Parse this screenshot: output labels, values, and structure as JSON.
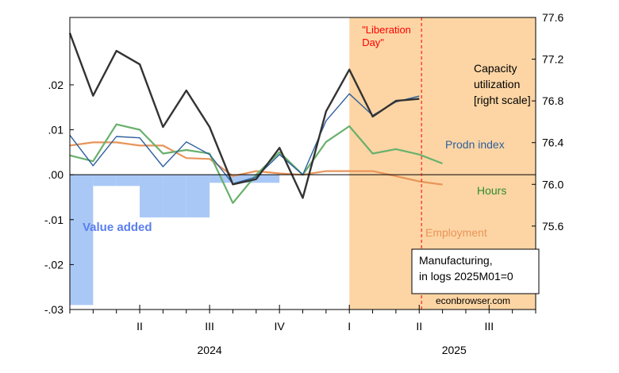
{
  "chart_data": {
    "type": "line",
    "x_labels": [
      {
        "label": "II",
        "t": 4
      },
      {
        "label": "III",
        "t": 7
      },
      {
        "label": "IV",
        "t": 10
      },
      {
        "label": "I",
        "t": 13
      },
      {
        "label": "II",
        "t": 16
      },
      {
        "label": "III",
        "t": 19
      }
    ],
    "year_labels": [
      {
        "label": "2024",
        "t": 7
      },
      {
        "label": "2025",
        "t": 17.5
      }
    ],
    "x_range": [
      1,
      21
    ],
    "left_axis": {
      "range": [
        -0.03,
        0.035
      ],
      "ticks": [
        ".02",
        ".01",
        ".00",
        "-.01",
        "-.02",
        "-.03"
      ],
      "tick_values": [
        0.02,
        0.01,
        0.0,
        -0.01,
        -0.02,
        -0.03
      ]
    },
    "right_axis": {
      "range": [
        74.8,
        77.6
      ],
      "ticks": [
        "77.6",
        "77.2",
        "76.8",
        "76.4",
        "76.0",
        "75.6"
      ],
      "tick_values": [
        77.6,
        77.2,
        76.8,
        76.4,
        76.0,
        75.6
      ]
    },
    "shading": {
      "start_t": 13,
      "end_t": 21,
      "color": "#fdd5a4",
      "label": "\"Liberation\nDay\"",
      "label_color": "#ff0000"
    },
    "event_line": {
      "t": 16.1,
      "color": "#ff0000"
    },
    "bars": {
      "name": "Value added",
      "color": "#a9c8f5",
      "label_color": "#5a7ef0",
      "values": [
        {
          "t0": 1,
          "t1": 2,
          "value": -0.029
        },
        {
          "t0": 2,
          "t1": 3,
          "value": -0.0025
        },
        {
          "t0": 3,
          "t1": 4,
          "value": -0.0025
        },
        {
          "t0": 4,
          "t1": 5,
          "value": -0.0095
        },
        {
          "t0": 5,
          "t1": 6,
          "value": -0.0095
        },
        {
          "t0": 6,
          "t1": 7,
          "value": -0.0095
        },
        {
          "t0": 7,
          "t1": 8,
          "value": -0.0018
        },
        {
          "t0": 8,
          "t1": 9,
          "value": -0.0018
        },
        {
          "t0": 9,
          "t1": 10,
          "value": -0.0018
        }
      ]
    },
    "series": [
      {
        "name": "Capacity utilization\n[right scale]",
        "axis": "right",
        "color": "#333333",
        "width": 2.4,
        "t": [
          1,
          2,
          3,
          4,
          5,
          6,
          7,
          8,
          9,
          10,
          11,
          12,
          13,
          14,
          15,
          16,
          17,
          18
        ],
        "values": [
          77.45,
          76.85,
          77.28,
          77.15,
          76.55,
          76.9,
          76.55,
          76.0,
          76.05,
          76.35,
          75.87,
          76.7,
          77.1,
          76.65,
          76.8,
          76.82,
          null,
          null
        ]
      },
      {
        "name": "Prodn index",
        "axis": "left",
        "color": "#2e5f9c",
        "width": 1.4,
        "t": [
          1,
          2,
          3,
          4,
          5,
          6,
          7,
          8,
          9,
          10,
          11,
          12,
          13,
          14,
          15,
          16,
          17,
          18
        ],
        "values": [
          0.0088,
          0.002,
          0.0085,
          0.0082,
          0.0018,
          0.0073,
          0.0045,
          -0.002,
          -0.0005,
          0.0045,
          0.0,
          0.012,
          0.018,
          0.0132,
          0.0162,
          0.0175,
          null,
          null
        ]
      },
      {
        "name": "Hours",
        "axis": "left",
        "color": "#69b06d",
        "width": 2.2,
        "t": [
          1,
          2,
          3,
          4,
          5,
          6,
          7,
          8,
          9,
          10,
          11,
          12,
          13,
          14,
          15,
          16,
          17,
          18
        ],
        "values": [
          0.0043,
          0.003,
          0.0112,
          0.01,
          0.0047,
          0.0055,
          0.0047,
          -0.0063,
          0.0,
          0.005,
          0.0,
          0.0073,
          0.0108,
          0.0047,
          0.0057,
          0.0045,
          0.0025,
          null
        ]
      },
      {
        "name": "Employment",
        "axis": "left",
        "color": "#e8955a",
        "width": 2.2,
        "t": [
          1,
          2,
          3,
          4,
          5,
          6,
          7,
          8,
          9,
          10,
          11,
          12,
          13,
          14,
          15,
          16,
          17,
          18
        ],
        "values": [
          0.0065,
          0.0072,
          0.0072,
          0.0065,
          0.0065,
          0.0037,
          0.0035,
          -0.0003,
          0.0008,
          0.0003,
          0.0,
          0.0008,
          0.0008,
          0.0008,
          -0.0003,
          -0.0015,
          -0.0022,
          null
        ]
      }
    ],
    "series_labels": {
      "capacity": "Capacity\nutilization\n[right scale]",
      "prodn": "Prodn index",
      "hours": "Hours",
      "employment": "Employment",
      "value_added": "Value added"
    },
    "note": "Manufacturing,\nin logs 2025M01=0",
    "source": "econbrowser.com"
  }
}
